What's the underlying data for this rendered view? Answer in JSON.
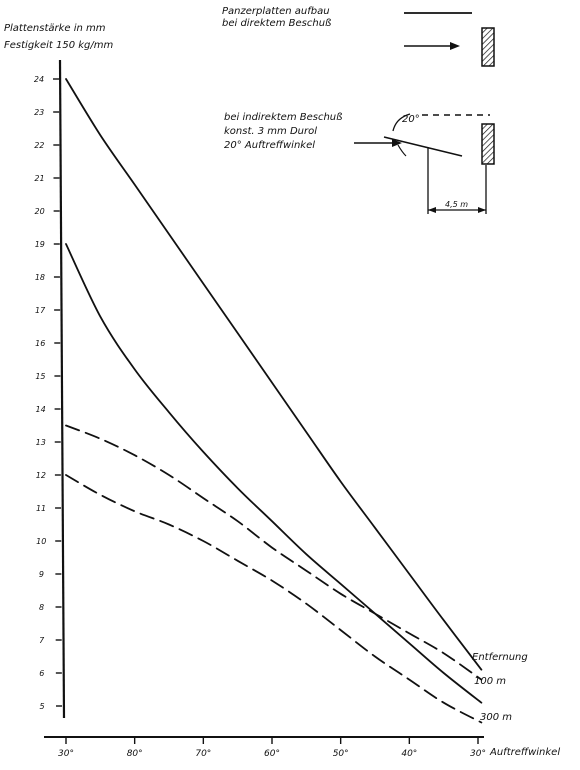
{
  "chart_data": {
    "type": "line",
    "title": "",
    "ylabel": "Plattenstärke in mm",
    "ylabel_sub": "Festigkeit 150 kg/mm",
    "xlabel": "Auftreffwinkel",
    "x_tick_labels": [
      "30°",
      "80°",
      "70°",
      "60°",
      "50°",
      "40°",
      "30°"
    ],
    "y_ticks": [
      5,
      6,
      7,
      8,
      9,
      10,
      11,
      12,
      13,
      14,
      15,
      16,
      17,
      18,
      19,
      20,
      21,
      22,
      23,
      24
    ],
    "y_tick_labels": [
      "5",
      "6",
      "7",
      "8",
      "9",
      "10",
      "11",
      "12",
      "13",
      "14",
      "15",
      "16",
      "17",
      "18",
      "19",
      "20",
      "21",
      "22",
      "23",
      "24"
    ],
    "ylim": [
      4.7,
      24.4
    ],
    "xlim": [
      0,
      6.1
    ],
    "grid": false,
    "series": [
      {
        "style": "solid",
        "x": [
          0,
          0.5,
          1,
          1.5,
          2,
          2.5,
          3,
          3.5,
          4,
          4.5,
          5,
          5.5,
          6.05
        ],
        "y": [
          24.0,
          22.3,
          20.8,
          19.3,
          17.8,
          16.3,
          14.8,
          13.3,
          11.8,
          10.4,
          9.0,
          7.6,
          6.1
        ]
      },
      {
        "style": "solid",
        "x": [
          0,
          0.5,
          1,
          1.5,
          2,
          2.5,
          3,
          3.5,
          4,
          4.5,
          5,
          5.5,
          6.05
        ],
        "y": [
          19.0,
          16.8,
          15.2,
          13.9,
          12.7,
          11.6,
          10.6,
          9.6,
          8.7,
          7.8,
          6.9,
          6.0,
          5.1
        ]
      },
      {
        "style": "dashed",
        "x": [
          0,
          0.5,
          1,
          1.5,
          2,
          2.5,
          3,
          3.5,
          4,
          4.5,
          5,
          5.5,
          6.05
        ],
        "y": [
          13.5,
          13.1,
          12.6,
          12.0,
          11.3,
          10.6,
          9.8,
          9.1,
          8.4,
          7.8,
          7.2,
          6.6,
          5.8
        ]
      },
      {
        "style": "dashed",
        "x": [
          0,
          0.5,
          1,
          1.5,
          2,
          2.5,
          3,
          3.5,
          4,
          4.5,
          5,
          5.5,
          6.05
        ],
        "y": [
          12.0,
          11.4,
          10.9,
          10.5,
          10.0,
          9.4,
          8.8,
          8.1,
          7.3,
          6.5,
          5.8,
          5.1,
          4.5
        ]
      }
    ],
    "annotations": {
      "distance_header": "Entfernung",
      "distance_100": "100 m",
      "distance_300": "300 m"
    }
  },
  "inset": {
    "direct_line1": "Panzerplatten aufbau",
    "direct_line2": "bei direktem Beschuß",
    "indirect_line1": "bei indirektem Beschuß",
    "indirect_line2": "konst. 3 mm Durol",
    "indirect_line3": "20° Auftreffwinkel",
    "angle_label": "20°",
    "dimension_label": "4,5 m"
  }
}
